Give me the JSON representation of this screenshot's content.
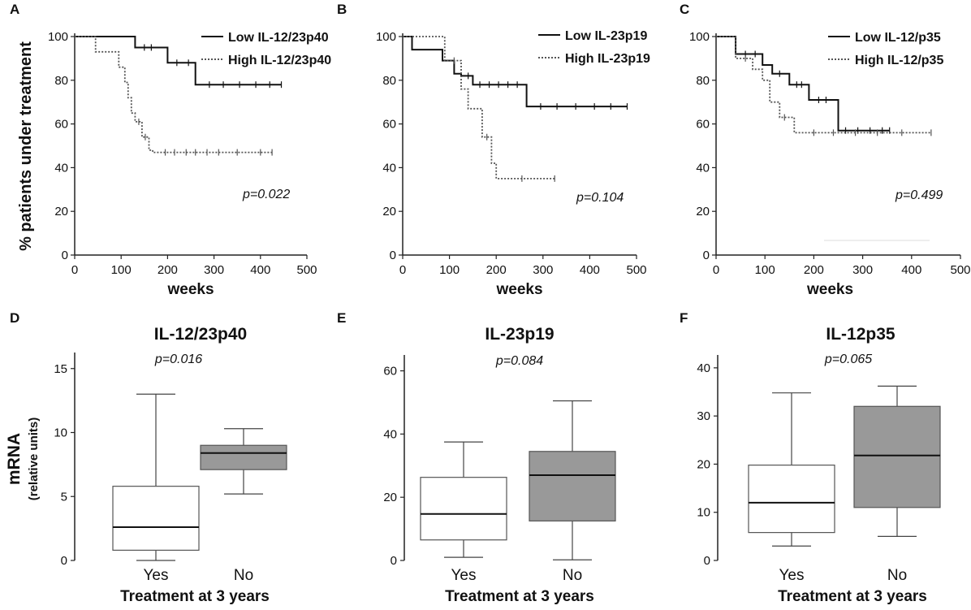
{
  "chart_data": [
    {
      "panel": "A",
      "type": "line",
      "subtype": "kaplan-meier",
      "xlabel": "weeks",
      "ylabel": "% patients under treatment",
      "xlim": [
        0,
        500
      ],
      "ylim": [
        0,
        100
      ],
      "xticks": [
        "0",
        "100",
        "200",
        "300",
        "400",
        "500"
      ],
      "yticks": [
        "0",
        "20",
        "40",
        "60",
        "80",
        "100"
      ],
      "legend": "top-right",
      "pvalue": "p=0.022",
      "series": [
        {
          "name": "Low IL-12/23p40",
          "style": "solid",
          "steps": [
            [
              0,
              100
            ],
            [
              130,
              100
            ],
            [
              130,
              95
            ],
            [
              200,
              95
            ],
            [
              200,
              88
            ],
            [
              260,
              88
            ],
            [
              260,
              78
            ],
            [
              445,
              78
            ]
          ],
          "censored": [
            [
              150,
              95
            ],
            [
              165,
              95
            ],
            [
              220,
              88
            ],
            [
              245,
              88
            ],
            [
              290,
              78
            ],
            [
              320,
              78
            ],
            [
              355,
              78
            ],
            [
              390,
              78
            ],
            [
              420,
              78
            ],
            [
              445,
              78
            ]
          ]
        },
        {
          "name": "High IL-12/23p40",
          "style": "dotted",
          "steps": [
            [
              0,
              100
            ],
            [
              45,
              100
            ],
            [
              45,
              93
            ],
            [
              95,
              93
            ],
            [
              95,
              86
            ],
            [
              108,
              86
            ],
            [
              108,
              79
            ],
            [
              115,
              79
            ],
            [
              115,
              72
            ],
            [
              122,
              72
            ],
            [
              122,
              65
            ],
            [
              130,
              65
            ],
            [
              130,
              61
            ],
            [
              145,
              61
            ],
            [
              145,
              54
            ],
            [
              160,
              54
            ],
            [
              160,
              48
            ],
            [
              168,
              48
            ],
            [
              168,
              47
            ],
            [
              425,
              47
            ]
          ],
          "censored": [
            [
              138,
              61
            ],
            [
              152,
              54
            ],
            [
              195,
              47
            ],
            [
              215,
              47
            ],
            [
              240,
              47
            ],
            [
              260,
              47
            ],
            [
              285,
              47
            ],
            [
              310,
              47
            ],
            [
              350,
              47
            ],
            [
              400,
              47
            ],
            [
              425,
              47
            ]
          ]
        }
      ]
    },
    {
      "panel": "B",
      "type": "line",
      "subtype": "kaplan-meier",
      "xlabel": "weeks",
      "ylabel": "",
      "xlim": [
        0,
        500
      ],
      "ylim": [
        0,
        100
      ],
      "xticks": [
        "0",
        "100",
        "200",
        "300",
        "400",
        "500"
      ],
      "yticks": [
        "0",
        "20",
        "40",
        "60",
        "80",
        "100"
      ],
      "legend": "top-right",
      "pvalue": "p=0.104",
      "series": [
        {
          "name": "Low IL-23p19",
          "style": "solid",
          "steps": [
            [
              0,
              100
            ],
            [
              20,
              100
            ],
            [
              20,
              94
            ],
            [
              85,
              94
            ],
            [
              85,
              89
            ],
            [
              110,
              89
            ],
            [
              110,
              83
            ],
            [
              125,
              83
            ],
            [
              125,
              82
            ],
            [
              150,
              82
            ],
            [
              150,
              78
            ],
            [
              265,
              78
            ],
            [
              265,
              68
            ],
            [
              480,
              68
            ]
          ],
          "censored": [
            [
              140,
              82
            ],
            [
              165,
              78
            ],
            [
              185,
              78
            ],
            [
              205,
              78
            ],
            [
              225,
              78
            ],
            [
              245,
              78
            ],
            [
              295,
              68
            ],
            [
              330,
              68
            ],
            [
              370,
              68
            ],
            [
              410,
              68
            ],
            [
              445,
              68
            ],
            [
              480,
              68
            ]
          ]
        },
        {
          "name": "High IL-23p19",
          "style": "dotted",
          "steps": [
            [
              0,
              100
            ],
            [
              90,
              100
            ],
            [
              90,
              89
            ],
            [
              125,
              89
            ],
            [
              125,
              76
            ],
            [
              140,
              76
            ],
            [
              140,
              67
            ],
            [
              170,
              67
            ],
            [
              170,
              54
            ],
            [
              190,
              54
            ],
            [
              190,
              42
            ],
            [
              200,
              42
            ],
            [
              200,
              35
            ],
            [
              325,
              35
            ]
          ],
          "censored": [
            [
              110,
              89
            ],
            [
              180,
              54
            ],
            [
              255,
              35
            ],
            [
              325,
              35
            ]
          ]
        }
      ]
    },
    {
      "panel": "C",
      "type": "line",
      "subtype": "kaplan-meier",
      "xlabel": "weeks",
      "ylabel": "",
      "xlim": [
        0,
        500
      ],
      "ylim": [
        0,
        100
      ],
      "xticks": [
        "0",
        "100",
        "200",
        "300",
        "400",
        "500"
      ],
      "yticks": [
        "0",
        "20",
        "40",
        "60",
        "80",
        "100"
      ],
      "legend": "top-right",
      "pvalue": "p=0.499",
      "series": [
        {
          "name": "Low IL-12/p35",
          "style": "solid",
          "steps": [
            [
              0,
              100
            ],
            [
              40,
              100
            ],
            [
              40,
              92
            ],
            [
              95,
              92
            ],
            [
              95,
              87
            ],
            [
              115,
              87
            ],
            [
              115,
              83
            ],
            [
              150,
              83
            ],
            [
              150,
              78
            ],
            [
              190,
              78
            ],
            [
              190,
              71
            ],
            [
              250,
              71
            ],
            [
              250,
              57
            ],
            [
              355,
              57
            ]
          ],
          "censored": [
            [
              60,
              92
            ],
            [
              80,
              92
            ],
            [
              130,
              83
            ],
            [
              165,
              78
            ],
            [
              175,
              78
            ],
            [
              210,
              71
            ],
            [
              225,
              71
            ],
            [
              265,
              57
            ],
            [
              290,
              57
            ],
            [
              315,
              57
            ],
            [
              340,
              57
            ],
            [
              355,
              57
            ]
          ]
        },
        {
          "name": "High IL-12/p35",
          "style": "dotted",
          "steps": [
            [
              0,
              100
            ],
            [
              40,
              100
            ],
            [
              40,
              90
            ],
            [
              75,
              90
            ],
            [
              75,
              85
            ],
            [
              95,
              85
            ],
            [
              95,
              80
            ],
            [
              110,
              80
            ],
            [
              110,
              70
            ],
            [
              130,
              70
            ],
            [
              130,
              63
            ],
            [
              160,
              63
            ],
            [
              160,
              56
            ],
            [
              440,
              56
            ]
          ],
          "censored": [
            [
              60,
              90
            ],
            [
              140,
              63
            ],
            [
              200,
              56
            ],
            [
              240,
              56
            ],
            [
              285,
              56
            ],
            [
              330,
              56
            ],
            [
              380,
              56
            ],
            [
              440,
              56
            ]
          ]
        }
      ]
    },
    {
      "panel": "D",
      "type": "box",
      "title": "IL-12/23p40",
      "xlabel": "Treatment at 3 years",
      "ylabel": "mRNA",
      "ylabel_sub": "(relative units)",
      "ylim": [
        0,
        16
      ],
      "yticks": [
        "0",
        "5",
        "10",
        "15"
      ],
      "ytick_values": [
        0,
        5,
        10,
        15
      ],
      "categories": [
        "Yes",
        "No"
      ],
      "pvalue": "p=0.016",
      "boxes": [
        {
          "name": "Yes",
          "fill": "#ffffff",
          "min": 0,
          "q1": 0.8,
          "median": 2.6,
          "q3": 5.8,
          "max": 13.0
        },
        {
          "name": "No",
          "fill": "#999999",
          "min": 5.2,
          "q1": 7.1,
          "median": 8.4,
          "q3": 9.0,
          "max": 10.3
        }
      ]
    },
    {
      "panel": "E",
      "type": "box",
      "title": "IL-23p19",
      "xlabel": "Treatment at 3 years",
      "ylabel": "",
      "ylim": [
        0,
        64
      ],
      "yticks": [
        "0",
        "20",
        "40",
        "60"
      ],
      "ytick_values": [
        0,
        20,
        40,
        60
      ],
      "categories": [
        "Yes",
        "No"
      ],
      "pvalue": "p=0.084",
      "boxes": [
        {
          "name": "Yes",
          "fill": "#ffffff",
          "min": 1.0,
          "q1": 6.5,
          "median": 14.7,
          "q3": 26.3,
          "max": 37.5
        },
        {
          "name": "No",
          "fill": "#999999",
          "min": 0.2,
          "q1": 12.5,
          "median": 27.0,
          "q3": 34.5,
          "max": 50.5
        }
      ]
    },
    {
      "panel": "F",
      "type": "box",
      "title": "IL-12p35",
      "xlabel": "Treatment at 3 years",
      "ylabel": "",
      "ylim": [
        0,
        42
      ],
      "yticks": [
        "0",
        "10",
        "20",
        "30",
        "40"
      ],
      "ytick_values": [
        0,
        10,
        20,
        30,
        40
      ],
      "categories": [
        "Yes",
        "No"
      ],
      "pvalue": "p=0.065",
      "boxes": [
        {
          "name": "Yes",
          "fill": "#ffffff",
          "min": 3.0,
          "q1": 5.8,
          "median": 12.0,
          "q3": 19.8,
          "max": 34.8
        },
        {
          "name": "No",
          "fill": "#999999",
          "min": 5.0,
          "q1": 11.0,
          "median": 21.8,
          "q3": 32.0,
          "max": 36.2
        }
      ]
    }
  ]
}
